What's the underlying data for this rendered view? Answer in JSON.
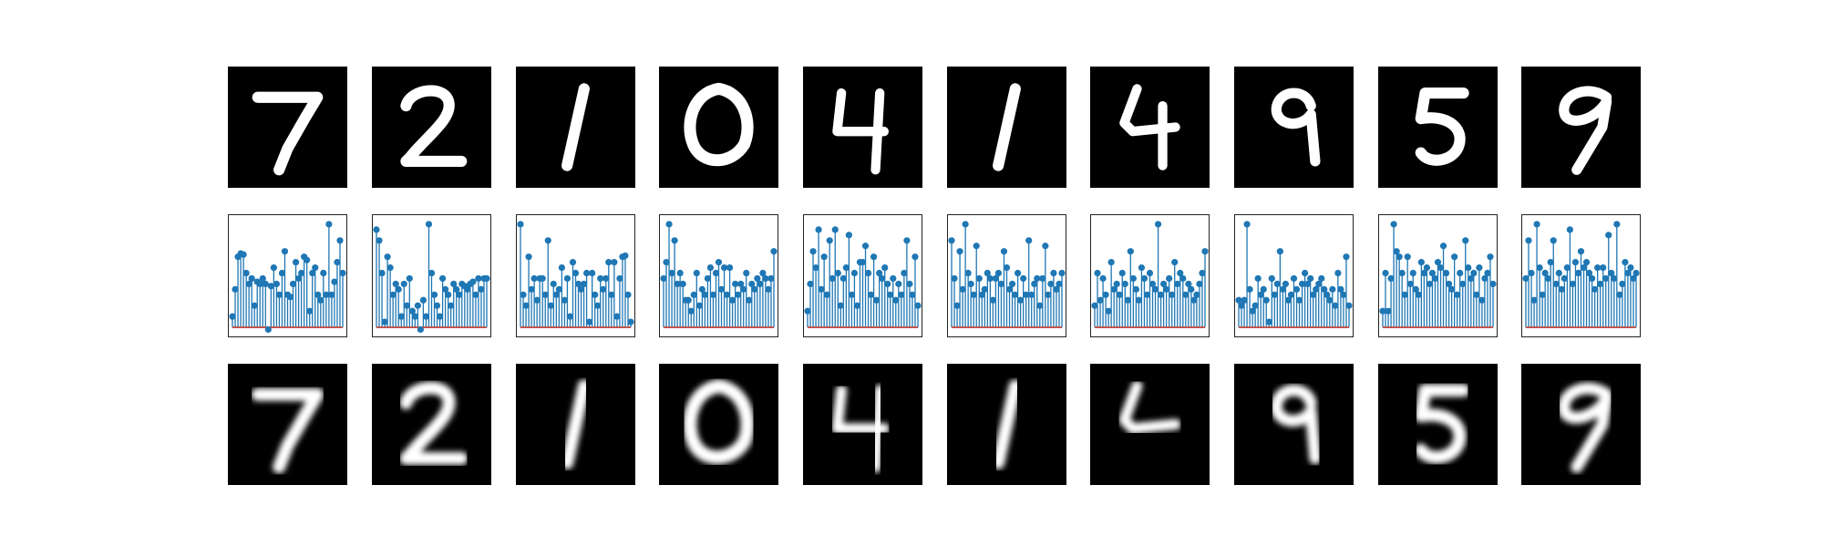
{
  "figure": {
    "rows": [
      "original-digits",
      "latent-code-stem-plots",
      "reconstructed-digits"
    ],
    "colors": {
      "image_background": "#000000",
      "stroke": "#ffffff",
      "stem": "#1f77b4",
      "baseline": "#c0392b"
    }
  },
  "digits": [
    "7",
    "2",
    "1",
    "0",
    "4",
    "1",
    "4",
    "9",
    "5",
    "9"
  ],
  "chart_data": [
    {
      "type": "stem",
      "panel": 1,
      "values": [
        0.1,
        0.35,
        0.65,
        0.68,
        0.67,
        0.5,
        0.4,
        0.45,
        0.2,
        0.42,
        0.4,
        0.45,
        0.4,
        -0.02,
        0.38,
        0.55,
        0.4,
        0.3,
        0.5,
        0.7,
        0.3,
        0.28,
        0.4,
        0.6,
        0.45,
        0.5,
        0.65,
        0.62,
        0.15,
        0.5,
        0.55,
        0.3,
        0.25,
        0.5,
        0.3,
        0.95,
        0.3,
        0.42,
        0.6,
        0.8,
        0.5
      ],
      "ylim": [
        -0.05,
        1.0
      ]
    },
    {
      "type": "stem",
      "panel": 2,
      "values": [
        0.9,
        0.8,
        0.5,
        0.05,
        0.65,
        0.55,
        0.3,
        0.4,
        0.35,
        0.1,
        0.4,
        0.2,
        0.45,
        0.15,
        0.1,
        0.2,
        -0.02,
        0.25,
        0.1,
        0.95,
        0.5,
        0.3,
        0.2,
        0.1,
        0.45,
        0.35,
        0.3,
        0.2,
        0.4,
        0.35,
        0.3,
        0.4,
        0.38,
        0.35,
        0.4,
        0.42,
        0.3,
        0.45,
        0.35,
        0.45,
        0.45
      ],
      "ylim": [
        -0.05,
        1.0
      ]
    },
    {
      "type": "stem",
      "panel": 3,
      "values": [
        0.95,
        0.3,
        0.2,
        0.65,
        0.35,
        0.45,
        0.25,
        0.45,
        0.45,
        0.3,
        0.8,
        0.2,
        0.4,
        0.3,
        0.35,
        0.55,
        0.25,
        0.45,
        0.1,
        0.6,
        0.5,
        0.4,
        0.35,
        0.4,
        0.5,
        0.05,
        0.5,
        0.3,
        0.2,
        0.45,
        0.35,
        0.45,
        0.6,
        0.3,
        0.6,
        0.1,
        0.45,
        0.65,
        0.66,
        0.3,
        0.05
      ],
      "ylim": [
        -0.05,
        1.0
      ]
    },
    {
      "type": "stem",
      "panel": 4,
      "values": [
        0.45,
        0.6,
        0.95,
        0.5,
        0.8,
        0.4,
        0.5,
        0.4,
        0.25,
        0.25,
        0.15,
        0.3,
        0.5,
        0.2,
        0.35,
        0.3,
        0.45,
        0.55,
        0.3,
        0.5,
        0.6,
        0.35,
        0.55,
        0.3,
        0.55,
        0.25,
        0.4,
        0.3,
        0.4,
        0.35,
        0.5,
        0.25,
        0.4,
        0.35,
        0.45,
        0.4,
        0.5,
        0.45,
        0.35,
        0.45,
        0.7
      ],
      "ylim": [
        -0.05,
        1.0
      ]
    },
    {
      "type": "stem",
      "panel": 5,
      "values": [
        0.15,
        0.4,
        0.7,
        0.55,
        0.9,
        0.35,
        0.65,
        0.3,
        0.8,
        0.45,
        0.9,
        0.5,
        0.2,
        0.45,
        0.55,
        0.85,
        0.3,
        0.5,
        0.2,
        0.6,
        0.6,
        0.75,
        0.5,
        0.3,
        0.65,
        0.25,
        0.5,
        0.45,
        0.55,
        0.4,
        0.3,
        0.45,
        0.25,
        0.4,
        0.3,
        0.5,
        0.8,
        0.4,
        0.3,
        0.65,
        0.2
      ],
      "ylim": [
        -0.05,
        1.0
      ]
    },
    {
      "type": "stem",
      "panel": 6,
      "values": [
        0.8,
        0.45,
        0.2,
        0.7,
        0.35,
        0.95,
        0.5,
        0.4,
        0.3,
        0.75,
        0.45,
        0.3,
        0.35,
        0.5,
        0.45,
        0.25,
        0.45,
        0.5,
        0.4,
        0.7,
        0.55,
        0.35,
        0.4,
        0.3,
        0.5,
        0.25,
        0.45,
        0.3,
        0.8,
        0.3,
        0.4,
        0.45,
        0.2,
        0.45,
        0.75,
        0.3,
        0.4,
        0.5,
        0.35,
        0.4,
        0.5
      ],
      "ylim": [
        -0.05,
        1.0
      ]
    },
    {
      "type": "stem",
      "panel": 7,
      "values": [
        0.2,
        0.5,
        0.25,
        0.45,
        0.3,
        0.15,
        0.6,
        0.35,
        0.4,
        0.3,
        0.5,
        0.4,
        0.25,
        0.7,
        0.45,
        0.35,
        0.25,
        0.55,
        0.45,
        0.3,
        0.5,
        0.4,
        0.35,
        0.95,
        0.3,
        0.4,
        0.35,
        0.45,
        0.3,
        0.6,
        0.4,
        0.5,
        0.45,
        0.3,
        0.4,
        0.35,
        0.25,
        0.3,
        0.4,
        0.5,
        0.7
      ],
      "ylim": [
        -0.05,
        1.0
      ]
    },
    {
      "type": "stem",
      "panel": 8,
      "values": [
        0.25,
        0.2,
        0.25,
        0.95,
        0.35,
        0.15,
        0.2,
        0.45,
        0.3,
        0.35,
        0.25,
        0.05,
        0.45,
        0.3,
        0.4,
        0.7,
        0.35,
        0.4,
        0.25,
        0.3,
        0.45,
        0.35,
        0.25,
        0.4,
        0.5,
        0.4,
        0.45,
        0.3,
        0.35,
        0.4,
        0.45,
        0.35,
        0.3,
        0.25,
        0.35,
        0.2,
        0.5,
        0.35,
        0.3,
        0.65,
        0.2
      ],
      "ylim": [
        -0.05,
        1.0
      ]
    },
    {
      "type": "stem",
      "panel": 9,
      "values": [
        0.15,
        0.5,
        0.15,
        0.45,
        0.95,
        0.7,
        0.65,
        0.5,
        0.3,
        0.65,
        0.4,
        0.5,
        0.35,
        0.3,
        0.6,
        0.5,
        0.55,
        0.4,
        0.5,
        0.45,
        0.6,
        0.55,
        0.75,
        0.5,
        0.4,
        0.35,
        0.65,
        0.3,
        0.5,
        0.4,
        0.8,
        0.55,
        0.45,
        0.5,
        0.3,
        0.55,
        0.25,
        0.45,
        0.5,
        0.65,
        0.4
      ],
      "ylim": [
        -0.05,
        1.0
      ]
    },
    {
      "type": "stem",
      "panel": 10,
      "values": [
        0.45,
        0.8,
        0.5,
        0.25,
        0.95,
        0.55,
        0.3,
        0.5,
        0.45,
        0.6,
        0.8,
        0.4,
        0.5,
        0.35,
        0.45,
        0.55,
        0.9,
        0.4,
        0.6,
        0.5,
        0.7,
        0.55,
        0.6,
        0.5,
        0.45,
        0.35,
        0.55,
        0.4,
        0.55,
        0.45,
        0.85,
        0.5,
        0.45,
        0.95,
        0.3,
        0.4,
        0.6,
        0.5,
        0.55,
        0.45,
        0.5
      ],
      "ylim": [
        -0.05,
        1.0
      ]
    }
  ]
}
